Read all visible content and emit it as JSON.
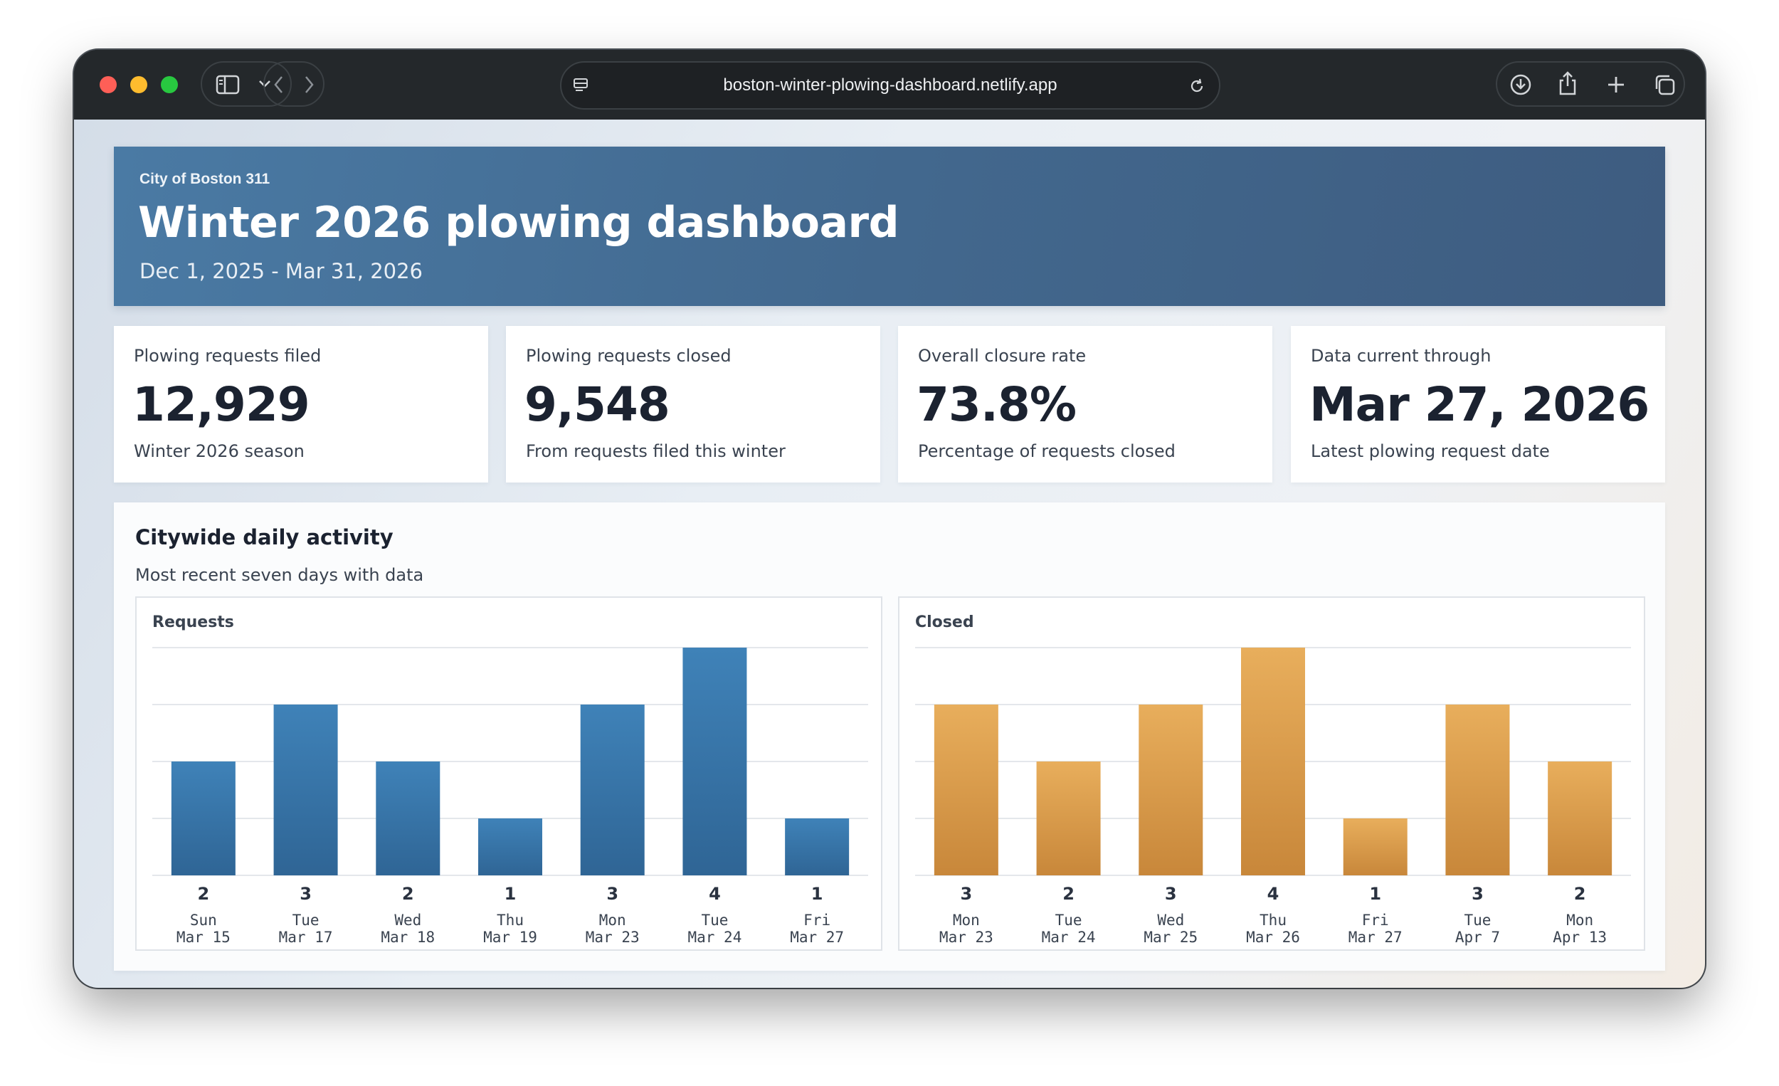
{
  "browser": {
    "url": "boston-winter-plowing-dashboard.netlify.app"
  },
  "header": {
    "eyebrow": "City of Boston 311",
    "title": "Winter 2026 plowing dashboard",
    "date_range": "Dec 1, 2025 - Mar 31, 2026"
  },
  "stats": [
    {
      "label": "Plowing requests filed",
      "value": "12,929",
      "sub": "Winter 2026 season"
    },
    {
      "label": "Plowing requests closed",
      "value": "9,548",
      "sub": "From requests filed this winter"
    },
    {
      "label": "Overall closure rate",
      "value": "73.8%",
      "sub": "Percentage of requests closed"
    },
    {
      "label": "Data current through",
      "value": "Mar 27, 2026",
      "sub": "Latest plowing request date"
    }
  ],
  "activity": {
    "title": "Citywide daily activity",
    "subtitle": "Most recent seven days with data"
  },
  "chart_data": [
    {
      "type": "bar",
      "title": "Requests",
      "color_top": "#3f82b8",
      "color_bottom": "#2f6595",
      "ylim": [
        0,
        4
      ],
      "categories": [
        {
          "day": "Sun",
          "date": "Mar 15"
        },
        {
          "day": "Tue",
          "date": "Mar 17"
        },
        {
          "day": "Wed",
          "date": "Mar 18"
        },
        {
          "day": "Thu",
          "date": "Mar 19"
        },
        {
          "day": "Mon",
          "date": "Mar 23"
        },
        {
          "day": "Tue",
          "date": "Mar 24"
        },
        {
          "day": "Fri",
          "date": "Mar 27"
        }
      ],
      "values": [
        2,
        3,
        2,
        1,
        3,
        4,
        1
      ]
    },
    {
      "type": "bar",
      "title": "Closed",
      "color_top": "#e8ae5c",
      "color_bottom": "#c8873a",
      "ylim": [
        0,
        4
      ],
      "categories": [
        {
          "day": "Mon",
          "date": "Mar 23"
        },
        {
          "day": "Tue",
          "date": "Mar 24"
        },
        {
          "day": "Wed",
          "date": "Mar 25"
        },
        {
          "day": "Thu",
          "date": "Mar 26"
        },
        {
          "day": "Fri",
          "date": "Mar 27"
        },
        {
          "day": "Tue",
          "date": "Apr 7"
        },
        {
          "day": "Mon",
          "date": "Apr 13"
        }
      ],
      "values": [
        3,
        2,
        3,
        4,
        1,
        3,
        2
      ]
    }
  ]
}
